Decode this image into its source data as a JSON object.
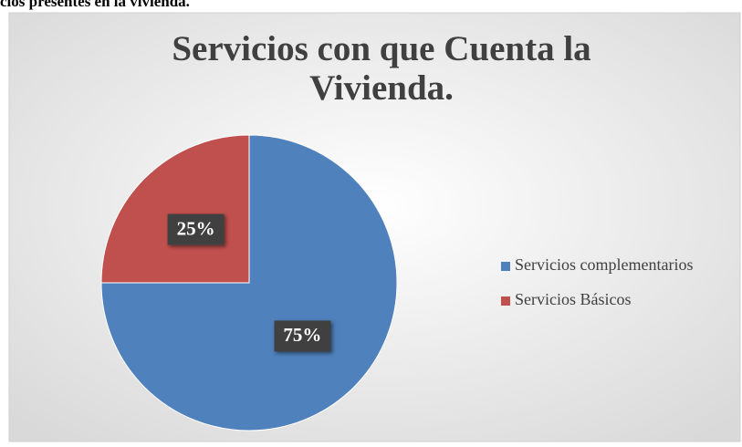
{
  "caption": "cios presentes en la vivienda.",
  "chart_data": {
    "type": "pie",
    "title": "Servicios con que Cuenta la Vivienda.",
    "categories": [
      "Servicios complementarios",
      "Servicios Básicos"
    ],
    "values": [
      75,
      25
    ],
    "value_labels": [
      "75%",
      "25%"
    ],
    "colors": [
      "#4f81bd",
      "#c0504d"
    ],
    "legend": "right"
  }
}
